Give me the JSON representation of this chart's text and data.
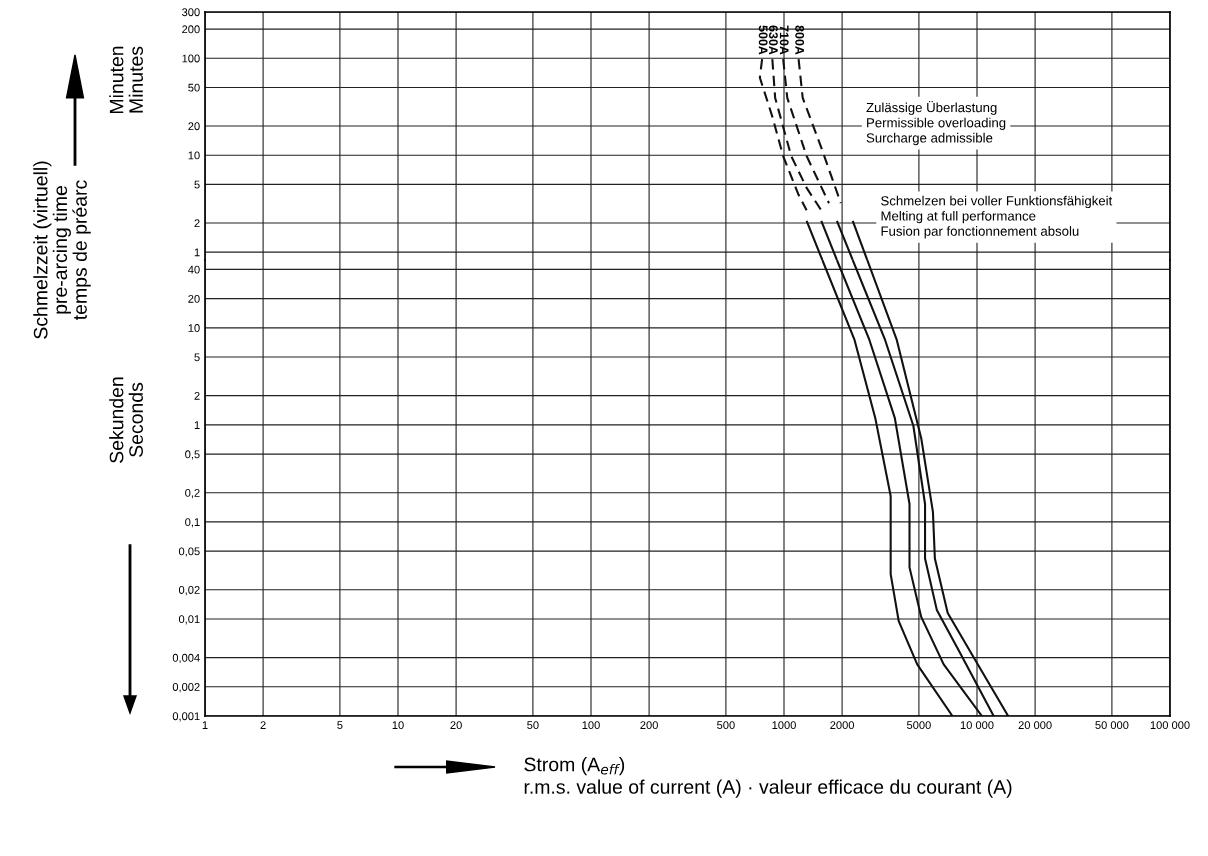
{
  "chart_data": [
    {
      "type": "line",
      "annotations": [
        "Zulässige Überlastung\nPermissible overloading\nSurcharge admissible",
        "Schmelzen bei voller Funktionsfähigkeit\nMelting at full performance\nFusion par fonctionnement absolu",
        "Minuten\nMinutes",
        "Schmelzzeit (virtuell)\npre-arcing time\ntemps de préarc"
      ],
      "log": "xy",
      "grid": true,
      "legend": false,
      "marker": "none",
      "tick_labels": "y",
      "xlim": [
        1,
        100000
      ],
      "ylim": [
        0.83,
        300
      ],
      "yticks": [
        1,
        2,
        5,
        10,
        20,
        50,
        100,
        200,
        300
      ],
      "series": [
        {
          "name": "500A",
          "color": "#111111",
          "line_style": "dashed",
          "x": [
            770,
            750,
            870,
            990,
            1190,
            1310
          ],
          "values": [
            98,
            63,
            25,
            9.8,
            3.9,
            2.7
          ]
        },
        {
          "name": "630A",
          "color": "#111111",
          "line_style": "dashed",
          "x": [
            870,
            900,
            1090,
            1310,
            1560
          ],
          "values": [
            98,
            39,
            9.8,
            4.6,
            2.7
          ]
        },
        {
          "name": "710A",
          "color": "#111111",
          "line_style": "dashed",
          "x": [
            990,
            1040,
            1310,
            1710
          ],
          "values": [
            98,
            39,
            9.8,
            3.2
          ]
        },
        {
          "name": "800A",
          "color": "#111111",
          "line_style": "dashed",
          "x": [
            1190,
            1250,
            1560,
            1970
          ],
          "values": [
            98,
            39,
            12,
            3.2
          ]
        },
        {
          "color": "#111111",
          "line_style": "solid",
          "x": [
            1310,
            1580
          ],
          "values": [
            2.1,
            0.83
          ]
        },
        {
          "color": "#111111",
          "line_style": "solid",
          "x": [
            1560,
            1880
          ],
          "values": [
            2.1,
            0.83
          ]
        },
        {
          "color": "#111111",
          "line_style": "solid",
          "x": [
            1880,
            2270
          ],
          "values": [
            2.1,
            0.83
          ]
        },
        {
          "color": "#111111",
          "line_style": "solid",
          "x": [
            2270,
            2700
          ],
          "values": [
            2.1,
            0.83
          ]
        }
      ]
    },
    {
      "type": "line",
      "xlabel": "Strom (A$_{eff}$)\nr.m.s. value of current (A) · valeur efficace du courant (A)",
      "annotations": [
        "Sekunden\nSeconds"
      ],
      "log": "xy",
      "grid": true,
      "legend": false,
      "marker": "none",
      "xlim": [
        1,
        100000
      ],
      "ylim": [
        0.001,
        50
      ],
      "xticks": [
        1,
        2,
        5,
        10,
        20,
        50,
        100,
        200,
        500,
        1000,
        2000,
        5000,
        {
          "value": 10000,
          "label": "10 000"
        },
        {
          "value": 20000,
          "label": "20 000"
        },
        {
          "value": 50000,
          "label": "50 000"
        },
        {
          "value": 100000,
          "label": "100 000"
        }
      ],
      "yticks": [
        {
          "value": 0.001,
          "label": "0,001"
        },
        {
          "value": 0.002,
          "label": "0,002"
        },
        {
          "value": 0.004,
          "label": "0,004"
        },
        {
          "value": 0.01,
          "label": "0,01"
        },
        {
          "value": 0.02,
          "label": "0,02"
        },
        {
          "value": 0.05,
          "label": "0,05"
        },
        {
          "value": 0.1,
          "label": "0,1"
        },
        {
          "value": 0.2,
          "label": "0,2"
        },
        {
          "value": 0.5,
          "label": "0,5"
        },
        1,
        2,
        5,
        10,
        20,
        40
      ],
      "series": [
        {
          "color": "#111111",
          "line_style": "solid",
          "x": [
            1580,
            2320,
            2970,
            3570,
            3570,
            3930,
            4900,
            7460
          ],
          "values": [
            50,
            7.5,
            1.18,
            0.185,
            0.029,
            0.0095,
            0.0034,
            0.001
          ]
        },
        {
          "color": "#111111",
          "line_style": "solid",
          "x": [
            1880,
            2770,
            3750,
            4470,
            4470,
            5140,
            6720,
            10600
          ],
          "values": [
            50,
            7.5,
            1.18,
            0.153,
            0.034,
            0.0105,
            0.0034,
            0.001
          ]
        },
        {
          "color": "#111111",
          "line_style": "solid",
          "x": [
            2270,
            3340,
            4680,
            5380,
            5380,
            6190,
            8110,
            12200
          ],
          "values": [
            50,
            7.5,
            0.98,
            0.153,
            0.042,
            0.0124,
            0.0046,
            0.001
          ]
        },
        {
          "color": "#111111",
          "line_style": "solid",
          "x": [
            2700,
            3840,
            5140,
            5910,
            6050,
            7050,
            9770,
            14500
          ],
          "values": [
            50,
            7.5,
            0.73,
            0.127,
            0.042,
            0.0115,
            0.0038,
            0.001
          ]
        }
      ]
    }
  ]
}
